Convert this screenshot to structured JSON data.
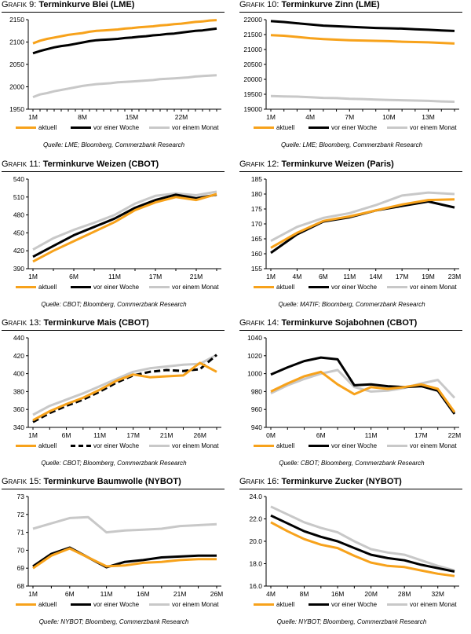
{
  "legend_labels": {
    "current": "aktuell",
    "week": "vor einer Woche",
    "month": "vor einem Monat"
  },
  "colors": {
    "current": "#f7a21b",
    "week": "#000000",
    "month": "#c8c8c8"
  },
  "chart_data": [
    {
      "type": "line",
      "grafik": "Grafik 9:",
      "title": "Terminkurve Blei (LME)",
      "xticks": [
        "1M",
        "8M",
        "15M",
        "22M"
      ],
      "yticks": [
        "1950",
        "2000",
        "2050",
        "2100",
        "2150"
      ],
      "ylim": [
        1950,
        2150
      ],
      "n": 27,
      "tick_index": [
        0,
        7,
        14,
        21
      ],
      "series": [
        {
          "name": "aktuell",
          "values": [
            2097,
            2103,
            2107,
            2110,
            2113,
            2116,
            2118,
            2120,
            2123,
            2125,
            2126,
            2127,
            2128,
            2130,
            2131,
            2133,
            2134,
            2135,
            2137,
            2138,
            2140,
            2141,
            2143,
            2145,
            2146,
            2148,
            2149
          ]
        },
        {
          "name": "vor einer Woche",
          "values": [
            2075,
            2080,
            2084,
            2088,
            2091,
            2093,
            2096,
            2099,
            2102,
            2104,
            2105,
            2106,
            2107,
            2109,
            2110,
            2112,
            2113,
            2115,
            2116,
            2118,
            2119,
            2121,
            2123,
            2125,
            2126,
            2128,
            2130
          ]
        },
        {
          "name": "vor einem Monat",
          "values": [
            1977,
            1983,
            1986,
            1990,
            1993,
            1996,
            1999,
            2002,
            2004,
            2006,
            2007,
            2008,
            2010,
            2011,
            2012,
            2013,
            2014,
            2015,
            2017,
            2018,
            2019,
            2020,
            2021,
            2023,
            2024,
            2025,
            2026
          ]
        }
      ],
      "source": "Quelle: LME; Bloomberg, Commerzbank Research"
    },
    {
      "type": "line",
      "grafik": "Grafik 10:",
      "title": "Terminkurve Zinn (LME)",
      "xticks": [
        "1M",
        "4M",
        "7M",
        "10M",
        "13M"
      ],
      "yticks": [
        "19000",
        "19500",
        "20000",
        "20500",
        "21000",
        "21500",
        "22000"
      ],
      "ylim": [
        19000,
        22000
      ],
      "n": 15,
      "tick_index": [
        0,
        3,
        6,
        9,
        12
      ],
      "series": [
        {
          "name": "aktuell",
          "values": [
            21480,
            21460,
            21420,
            21380,
            21350,
            21330,
            21310,
            21300,
            21290,
            21280,
            21260,
            21250,
            21240,
            21220,
            21200
          ]
        },
        {
          "name": "vor einer Woche",
          "values": [
            21950,
            21920,
            21880,
            21840,
            21800,
            21780,
            21760,
            21740,
            21720,
            21710,
            21700,
            21680,
            21660,
            21640,
            21620
          ]
        },
        {
          "name": "vor einem Monat",
          "values": [
            19440,
            19430,
            19420,
            19400,
            19380,
            19370,
            19350,
            19340,
            19320,
            19310,
            19300,
            19290,
            19280,
            19260,
            19250
          ]
        }
      ],
      "source": "Quelle: LME; Bloomberg, Commerzbank Research"
    },
    {
      "type": "line",
      "grafik": "Grafik 11:",
      "title": "Terminkurve Weizen (CBOT)",
      "xticks": [
        "1M",
        "6M",
        "11M",
        "17M",
        "21M"
      ],
      "yticks": [
        "390",
        "420",
        "450",
        "480",
        "510",
        "540"
      ],
      "ylim": [
        390,
        540
      ],
      "n": 10,
      "tick_index": [
        0,
        2,
        4,
        6,
        8
      ],
      "series": [
        {
          "name": "aktuell",
          "values": [
            402,
            420,
            436,
            452,
            468,
            488,
            501,
            510,
            505,
            515
          ]
        },
        {
          "name": "vor einer Woche",
          "values": [
            410,
            428,
            446,
            460,
            474,
            492,
            505,
            514,
            508,
            514
          ]
        },
        {
          "name": "vor einem Monat",
          "values": [
            422,
            441,
            455,
            467,
            480,
            499,
            512,
            516,
            513,
            519
          ]
        }
      ],
      "source": "Quelle: CBOT; Bloomberg, Commerzbank Research"
    },
    {
      "type": "line",
      "grafik": "Grafik 12:",
      "title": "Terminkurve Weizen (Paris)",
      "xticks": [
        "1M",
        "4M",
        "6M",
        "11M",
        "14M",
        "17M",
        "19M",
        "23M"
      ],
      "yticks": [
        "155",
        "160",
        "165",
        "170",
        "175",
        "180",
        "185"
      ],
      "ylim": [
        155,
        185
      ],
      "n": 8,
      "tick_index": [
        0,
        1,
        2,
        3,
        4,
        5,
        6,
        7
      ],
      "series": [
        {
          "name": "aktuell",
          "values": [
            162,
            167,
            171,
            172.5,
            174.5,
            176.5,
            178,
            178.2
          ]
        },
        {
          "name": "vor einer Woche",
          "values": [
            160.3,
            166.5,
            170.8,
            172.2,
            174.5,
            176,
            177.5,
            175.5
          ]
        },
        {
          "name": "vor einem Monat",
          "values": [
            164.3,
            169,
            172,
            173.6,
            176.3,
            179.5,
            180.5,
            180
          ]
        }
      ],
      "source": "Quelle: MATIF; Bloomberg, Commerzbank Research"
    },
    {
      "type": "line",
      "grafik": "Grafik 13:",
      "title": "Terminkurve Mais (CBOT)",
      "xticks": [
        "1M",
        "6M",
        "11M",
        "17M",
        "21M",
        "26M"
      ],
      "yticks": [
        "340",
        "360",
        "380",
        "400",
        "420",
        "440"
      ],
      "ylim": [
        340,
        440
      ],
      "n": 12,
      "tick_index": [
        0,
        2,
        4,
        6,
        8,
        10
      ],
      "series": [
        {
          "name": "aktuell",
          "values": [
            348,
            358,
            366,
            373,
            382,
            392,
            399,
            396,
            397,
            398,
            412,
            402
          ]
        },
        {
          "name": "vor einer Woche",
          "values": [
            346,
            356,
            364,
            371,
            380,
            390,
            398,
            402,
            404,
            403,
            405,
            421
          ]
        },
        {
          "name": "vor einem Monat",
          "values": [
            354,
            364,
            371,
            378,
            386,
            394,
            402,
            406,
            408,
            410,
            411,
            421
          ]
        }
      ],
      "source": "Quelle: CBOT; Bloomberg, Commerzbank Research"
    },
    {
      "type": "line",
      "grafik": "Grafik 14:",
      "title": "Terminkurve Sojabohnen (CBOT)",
      "xticks": [
        "0M",
        "6M",
        "11M",
        "17M",
        "22M"
      ],
      "yticks": [
        "940",
        "960",
        "980",
        "1000",
        "1020",
        "1040"
      ],
      "ylim": [
        940,
        1040
      ],
      "n": 12,
      "tick_index": [
        0,
        3,
        6,
        9,
        11
      ],
      "series": [
        {
          "name": "aktuell",
          "values": [
            980,
            989,
            997,
            1002,
            988,
            977,
            985,
            983,
            985,
            988,
            983,
            957
          ]
        },
        {
          "name": "vor einer Woche",
          "values": [
            999,
            1007,
            1014,
            1018,
            1016,
            987,
            988,
            986,
            985,
            986,
            981,
            955
          ]
        },
        {
          "name": "vor einem Monat",
          "values": [
            978,
            987,
            994,
            1000,
            1004,
            985,
            980,
            981,
            984,
            989,
            993,
            973
          ]
        }
      ],
      "source": "Quelle: CBOT; Bloomberg, Commerzbank Research"
    },
    {
      "type": "line",
      "grafik": "Grafik 15:",
      "title": "Terminkurve Baumwolle (NYBOT)",
      "xticks": [
        "1M",
        "6M",
        "11M",
        "16M",
        "21M",
        "26M"
      ],
      "yticks": [
        "68",
        "69",
        "70",
        "71",
        "72",
        "73"
      ],
      "ylim": [
        68,
        73
      ],
      "n": 11,
      "tick_index": [
        0,
        2,
        4,
        6,
        8,
        10
      ],
      "series": [
        {
          "name": "aktuell",
          "values": [
            69,
            69.7,
            70.1,
            69.6,
            69.1,
            69.15,
            69.3,
            69.35,
            69.45,
            69.5,
            69.5
          ]
        },
        {
          "name": "vor einer Woche",
          "values": [
            69.1,
            69.8,
            70.15,
            69.6,
            69.05,
            69.35,
            69.45,
            69.6,
            69.65,
            69.7,
            69.7
          ]
        },
        {
          "name": "vor einem Monat",
          "values": [
            71.2,
            71.5,
            71.8,
            71.85,
            71,
            71.1,
            71.15,
            71.2,
            71.35,
            71.4,
            71.45
          ]
        }
      ],
      "source": "Quelle: NYBOT; Bloomberg, Commerzbank Research"
    },
    {
      "type": "line",
      "grafik": "Grafik 16:",
      "title": "Terminkurve Zucker (NYBOT)",
      "xticks": [
        "4M",
        "8M",
        "16M",
        "20M",
        "28M",
        "32M"
      ],
      "yticks": [
        "16.0",
        "18.0",
        "20.0",
        "22.0",
        "24.0"
      ],
      "ylim": [
        16,
        24
      ],
      "n": 12,
      "tick_index": [
        0,
        2,
        4,
        6,
        8,
        10
      ],
      "series": [
        {
          "name": "aktuell",
          "values": [
            21.7,
            20.9,
            20.2,
            19.7,
            19.4,
            18.7,
            18.1,
            17.8,
            17.7,
            17.4,
            17.1,
            16.9
          ]
        },
        {
          "name": "vor einer Woche",
          "values": [
            22.3,
            21.6,
            20.9,
            20.4,
            20,
            19.4,
            18.8,
            18.5,
            18.3,
            17.9,
            17.6,
            17.3
          ]
        },
        {
          "name": "vor einem Monat",
          "values": [
            23.1,
            22.4,
            21.7,
            21.2,
            20.8,
            20,
            19.3,
            19,
            18.8,
            18.3,
            17.8,
            17.4
          ]
        }
      ],
      "source": "Quelle: NYBOT; Bloomberg, Commerzbank Research"
    }
  ]
}
